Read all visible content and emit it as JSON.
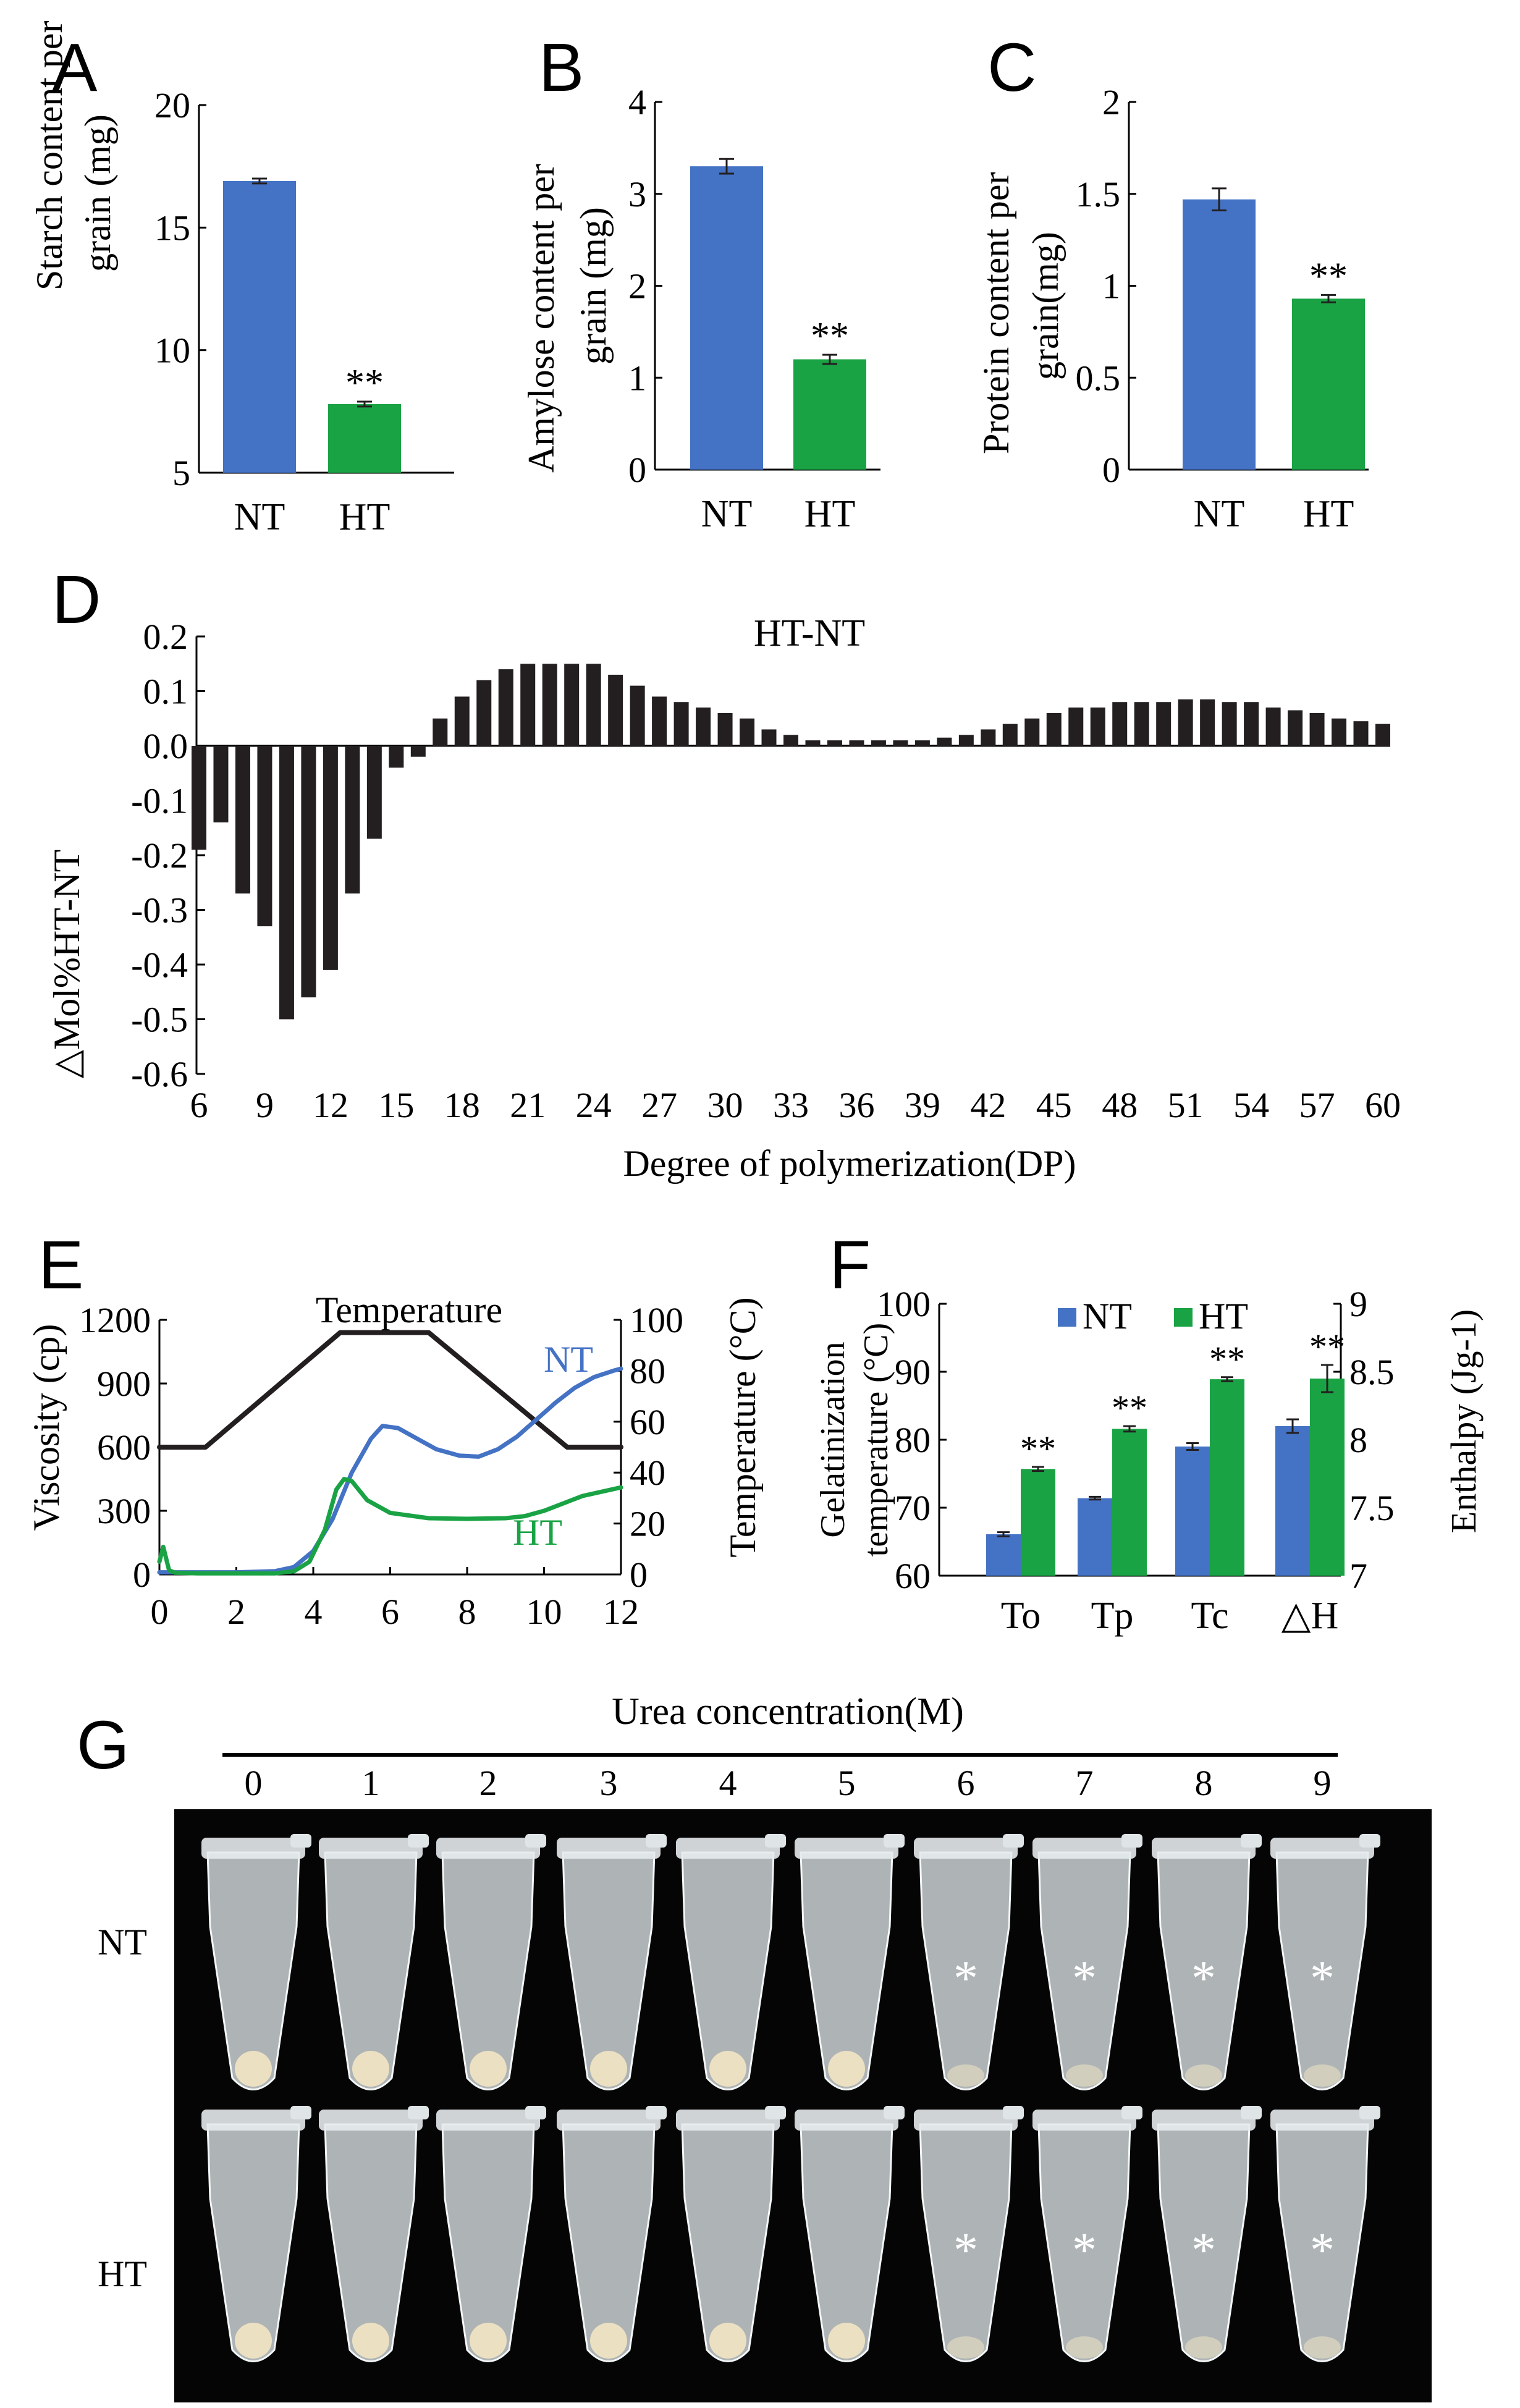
{
  "colors": {
    "nt": "#4472C4",
    "ht": "#1AA345",
    "dark": "#231F20",
    "white": "#ffffff",
    "tube_fill": "#d4dadd",
    "pellet": "#efe3c3",
    "photo_bg": "#050505"
  },
  "panel_letters": {
    "a": "A",
    "b": "B",
    "c": "C",
    "d": "D",
    "e": "E",
    "f": "F",
    "g": "G"
  },
  "chart_data": [
    {
      "id": "A",
      "type": "bar",
      "categories": [
        "NT",
        "HT"
      ],
      "values": [
        16.9,
        7.8
      ],
      "errors": [
        0.1,
        0.1
      ],
      "significance": [
        "",
        "**"
      ],
      "ylabel_lines": [
        "Starch content per",
        "grain (mg)"
      ],
      "ylim": [
        5,
        20
      ],
      "yticks": [
        "5",
        "10",
        "15",
        "20"
      ],
      "ytick_values": [
        5,
        10,
        15,
        20
      ]
    },
    {
      "id": "B",
      "type": "bar",
      "categories": [
        "NT",
        "HT"
      ],
      "values": [
        3.3,
        1.2
      ],
      "errors": [
        0.08,
        0.05
      ],
      "significance": [
        "",
        "**"
      ],
      "ylabel_lines": [
        "Amylose content per",
        "grain (mg)"
      ],
      "ylim": [
        0,
        4
      ],
      "yticks": [
        "0",
        "1",
        "2",
        "3",
        "4"
      ],
      "ytick_values": [
        0,
        1,
        2,
        3,
        4
      ]
    },
    {
      "id": "C",
      "type": "bar",
      "categories": [
        "NT",
        "HT"
      ],
      "values": [
        1.47,
        0.93
      ],
      "errors": [
        0.06,
        0.02
      ],
      "significance": [
        "",
        "**"
      ],
      "ylabel_lines": [
        "Protein content per",
        "grain(mg)"
      ],
      "ylim": [
        0,
        2
      ],
      "yticks": [
        "0",
        "0.5",
        "1",
        "1.5",
        "2"
      ],
      "ytick_values": [
        0,
        0.5,
        1,
        1.5,
        2
      ]
    },
    {
      "id": "D",
      "type": "bar",
      "title": "HT-NT",
      "x": [
        6,
        7,
        8,
        9,
        10,
        11,
        12,
        13,
        14,
        15,
        16,
        17,
        18,
        19,
        20,
        21,
        22,
        23,
        24,
        25,
        26,
        27,
        28,
        29,
        30,
        31,
        32,
        33,
        34,
        35,
        36,
        37,
        38,
        39,
        40,
        41,
        42,
        43,
        44,
        45,
        46,
        47,
        48,
        49,
        50,
        51,
        52,
        53,
        54,
        55,
        56,
        57,
        58,
        59,
        60
      ],
      "values": [
        -0.19,
        -0.14,
        -0.27,
        -0.33,
        -0.5,
        -0.46,
        -0.41,
        -0.27,
        -0.17,
        -0.04,
        -0.02,
        0.05,
        0.09,
        0.12,
        0.14,
        0.15,
        0.15,
        0.15,
        0.15,
        0.13,
        0.11,
        0.09,
        0.08,
        0.07,
        0.06,
        0.05,
        0.03,
        0.02,
        0.01,
        0.01,
        0.01,
        0.01,
        0.01,
        0.01,
        0.015,
        0.02,
        0.03,
        0.04,
        0.05,
        0.06,
        0.07,
        0.07,
        0.08,
        0.08,
        0.08,
        0.085,
        0.085,
        0.08,
        0.08,
        0.07,
        0.065,
        0.06,
        0.05,
        0.045,
        0.04
      ],
      "xlabel": "Degree of polymerization(DP)",
      "ylabel": "△Mol%HT-NT",
      "ylim": [
        -0.6,
        0.2
      ],
      "xticks": [
        "6",
        "9",
        "12",
        "15",
        "18",
        "21",
        "24",
        "27",
        "30",
        "33",
        "36",
        "39",
        "42",
        "45",
        "48",
        "51",
        "54",
        "57",
        "60"
      ],
      "xtick_values": [
        6,
        9,
        12,
        15,
        18,
        21,
        24,
        27,
        30,
        33,
        36,
        39,
        42,
        45,
        48,
        51,
        54,
        57,
        60
      ],
      "yticks": [
        "-0.6",
        "-0.5",
        "-0.4",
        "-0.3",
        "-0.2",
        "-0.1",
        "0.0",
        "0.1",
        "0.2"
      ],
      "ytick_values": [
        -0.6,
        -0.5,
        -0.4,
        -0.3,
        -0.2,
        -0.1,
        0,
        0.1,
        0.2
      ]
    },
    {
      "id": "E",
      "type": "line",
      "xlim": [
        0,
        12
      ],
      "xticks": [
        "0",
        "2",
        "4",
        "6",
        "8",
        "10",
        "12"
      ],
      "xtick_values": [
        0,
        2,
        4,
        6,
        8,
        10,
        12
      ],
      "ylabel_left": "Viscosity (cp)",
      "ylim_left": [
        0,
        1200
      ],
      "yticks_left": [
        "0",
        "300",
        "600",
        "900",
        "1200"
      ],
      "ytick_values_left": [
        0,
        300,
        600,
        900,
        1200
      ],
      "ylabel_right": "Temperature (°C)",
      "ylim_right": [
        0,
        100
      ],
      "yticks_right": [
        "0",
        "20",
        "40",
        "60",
        "80",
        "100"
      ],
      "ytick_values_right": [
        0,
        20,
        40,
        60,
        80,
        100
      ],
      "annotations": {
        "temperature": "Temperature",
        "nt": "NT",
        "ht": "HT"
      },
      "series": [
        {
          "name": "Temperature",
          "axis": "right",
          "x": [
            0,
            1.2,
            4.7,
            7.0,
            10.6,
            12
          ],
          "y": [
            50,
            50,
            95,
            95,
            50,
            50
          ]
        },
        {
          "name": "NT",
          "axis": "left",
          "x": [
            0,
            0.5,
            1,
            2,
            3,
            3.5,
            4,
            4.5,
            5,
            5.5,
            5.8,
            6.2,
            6.7,
            7.2,
            7.8,
            8.3,
            8.8,
            9.3,
            9.8,
            10.3,
            10.8,
            11.3,
            11.8,
            12
          ],
          "y": [
            10,
            10,
            10,
            10,
            15,
            35,
            110,
            260,
            480,
            640,
            700,
            690,
            640,
            590,
            560,
            555,
            590,
            650,
            730,
            810,
            880,
            930,
            960,
            970
          ]
        },
        {
          "name": "HT",
          "axis": "left",
          "x": [
            0,
            0.1,
            0.25,
            0.4,
            1,
            2,
            3,
            3.5,
            3.9,
            4.3,
            4.6,
            4.8,
            5.0,
            5.4,
            6,
            7,
            8,
            9,
            9.5,
            10,
            11,
            12
          ],
          "y": [
            60,
            130,
            20,
            8,
            5,
            5,
            5,
            15,
            60,
            210,
            400,
            450,
            440,
            350,
            290,
            265,
            262,
            265,
            275,
            300,
            370,
            410
          ]
        }
      ]
    },
    {
      "id": "F",
      "type": "bar",
      "categories": [
        "To",
        "Tp",
        "Tc",
        "△H"
      ],
      "series": [
        {
          "name": "NT",
          "values": [
            66.1,
            71.4,
            79.0,
            8.1
          ],
          "errors": [
            0.3,
            0.2,
            0.5,
            0.05
          ]
        },
        {
          "name": "HT",
          "values": [
            75.7,
            81.6,
            88.9,
            8.45
          ],
          "errors": [
            0.3,
            0.4,
            0.3,
            0.1
          ]
        }
      ],
      "significance": [
        "**",
        "**",
        "**",
        "**"
      ],
      "ylabel_left_lines": [
        "Gelatinization",
        "temperature (°C)"
      ],
      "ylim_left": [
        60,
        100
      ],
      "yticks_left": [
        "60",
        "70",
        "80",
        "90",
        "100"
      ],
      "ytick_values_left": [
        60,
        70,
        80,
        90,
        100
      ],
      "ylabel_right": "Enthalpy (Jg-1)",
      "ylim_right": [
        7,
        9
      ],
      "yticks_right": [
        "7",
        "7.5",
        "8",
        "8.5",
        "9"
      ],
      "ytick_values_right": [
        7,
        7.5,
        8,
        8.5,
        9
      ],
      "legend": [
        "NT",
        "HT"
      ],
      "legend_position": "top"
    }
  ],
  "panel_g": {
    "title": "Urea concentration(M)",
    "concentrations": [
      "0",
      "1",
      "2",
      "3",
      "4",
      "5",
      "6",
      "7",
      "8",
      "9"
    ],
    "rows": [
      "NT",
      "HT"
    ],
    "asterisk": "*",
    "asterisk_from_index": 6
  }
}
